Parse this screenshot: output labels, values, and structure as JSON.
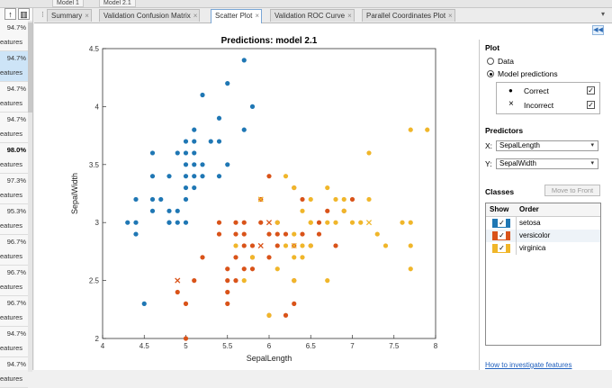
{
  "top_tabs": [
    "Model 1",
    "Model 2.1"
  ],
  "models": [
    {
      "accuracy": "94.7%",
      "features": "eatures"
    },
    {
      "accuracy": "94.7%",
      "features": "eatures"
    },
    {
      "accuracy": "94.7%",
      "features": "eatures"
    },
    {
      "accuracy": "94.7%",
      "features": "eatures"
    },
    {
      "accuracy": "98.0%",
      "features": "eatures"
    },
    {
      "accuracy": "97.3%",
      "features": "eatures"
    },
    {
      "accuracy": "95.3%",
      "features": "eatures"
    },
    {
      "accuracy": "96.7%",
      "features": "eatures"
    },
    {
      "accuracy": "96.7%",
      "features": "eatures"
    },
    {
      "accuracy": "96.7%",
      "features": "eatures"
    },
    {
      "accuracy": "94.7%",
      "features": "eatures"
    },
    {
      "accuracy": "94.7%",
      "features": "eatures"
    }
  ],
  "tabs": [
    "Summary",
    "Validation Confusion Matrix",
    "Scatter Plot",
    "Validation ROC Curve",
    "Parallel Coordinates Plot"
  ],
  "tab_close": "×",
  "tab_menu": "▾",
  "panel": {
    "plot_heading": "Plot",
    "opt_data": "Data",
    "opt_model": "Model predictions",
    "correct_label": "Correct",
    "incorrect_label": "Incorrect",
    "predictors_heading": "Predictors",
    "x_label": "X:",
    "x_value": "SepalLength",
    "y_label": "Y:",
    "y_value": "SepalWidth",
    "classes_heading": "Classes",
    "move_button": "Move to Front",
    "show_header": "Show",
    "order_header": "Order",
    "help_link": "How to investigate features",
    "checkmark": "✓",
    "correct_marker": "●",
    "incorrect_marker": "×",
    "dropdown_arrow": "▾"
  },
  "colors": {
    "setosa": "#1f77b4",
    "versicolor": "#d95319",
    "virginica": "#f0b62a"
  },
  "chart_data": {
    "type": "scatter",
    "title": "Predictions: model 2.1",
    "xlabel": "SepalLength",
    "ylabel": "SepalWidth",
    "xlim": [
      4,
      8
    ],
    "ylim": [
      2,
      4.5
    ],
    "xticks": [
      "4",
      "4.5",
      "5",
      "5.5",
      "6",
      "6.5",
      "7",
      "7.5",
      "8"
    ],
    "yticks": [
      "2",
      "2.5",
      "3",
      "3.5",
      "4",
      "4.5"
    ],
    "grid": false,
    "series": [
      {
        "name": "setosa",
        "color": "#1f77b4",
        "correct": [
          [
            4.3,
            3.0
          ],
          [
            4.4,
            3.0
          ],
          [
            4.4,
            2.9
          ],
          [
            4.4,
            3.2
          ],
          [
            4.5,
            2.3
          ],
          [
            4.6,
            3.1
          ],
          [
            4.6,
            3.4
          ],
          [
            4.6,
            3.6
          ],
          [
            4.6,
            3.2
          ],
          [
            4.7,
            3.2
          ],
          [
            4.8,
            3.0
          ],
          [
            4.8,
            3.1
          ],
          [
            4.8,
            3.4
          ],
          [
            4.8,
            3.0
          ],
          [
            4.9,
            3.0
          ],
          [
            4.9,
            3.1
          ],
          [
            4.9,
            3.6
          ],
          [
            5.0,
            3.0
          ],
          [
            5.0,
            3.2
          ],
          [
            5.0,
            3.3
          ],
          [
            5.0,
            3.4
          ],
          [
            5.0,
            3.5
          ],
          [
            5.0,
            3.6
          ],
          [
            5.1,
            3.3
          ],
          [
            5.1,
            3.4
          ],
          [
            5.1,
            3.5
          ],
          [
            5.1,
            3.7
          ],
          [
            5.1,
            3.8
          ],
          [
            5.2,
            3.4
          ],
          [
            5.2,
            3.5
          ],
          [
            5.2,
            4.1
          ],
          [
            5.3,
            3.7
          ],
          [
            5.4,
            3.4
          ],
          [
            5.4,
            3.7
          ],
          [
            5.4,
            3.9
          ],
          [
            5.5,
            3.5
          ],
          [
            5.5,
            4.2
          ],
          [
            5.7,
            3.8
          ],
          [
            5.7,
            4.4
          ],
          [
            5.8,
            4.0
          ],
          [
            5.1,
            3.6
          ],
          [
            5.0,
            3.7
          ]
        ],
        "incorrect": []
      },
      {
        "name": "versicolor",
        "color": "#d95319",
        "correct": [
          [
            4.9,
            2.4
          ],
          [
            5.0,
            2.0
          ],
          [
            5.0,
            2.3
          ],
          [
            5.1,
            2.5
          ],
          [
            5.2,
            2.7
          ],
          [
            5.4,
            3.0
          ],
          [
            5.5,
            2.3
          ],
          [
            5.5,
            2.4
          ],
          [
            5.5,
            2.5
          ],
          [
            5.5,
            2.6
          ],
          [
            5.6,
            2.5
          ],
          [
            5.6,
            2.7
          ],
          [
            5.6,
            2.9
          ],
          [
            5.6,
            3.0
          ],
          [
            5.7,
            2.6
          ],
          [
            5.7,
            2.8
          ],
          [
            5.7,
            2.9
          ],
          [
            5.7,
            3.0
          ],
          [
            5.8,
            2.6
          ],
          [
            5.8,
            2.7
          ],
          [
            5.9,
            3.0
          ],
          [
            5.9,
            3.2
          ],
          [
            6.0,
            2.2
          ],
          [
            6.0,
            2.7
          ],
          [
            6.0,
            2.9
          ],
          [
            6.0,
            3.4
          ],
          [
            6.1,
            2.8
          ],
          [
            6.1,
            2.9
          ],
          [
            6.1,
            3.0
          ],
          [
            6.2,
            2.2
          ],
          [
            6.2,
            2.9
          ],
          [
            6.3,
            2.3
          ],
          [
            6.3,
            2.5
          ],
          [
            6.3,
            3.3
          ],
          [
            6.4,
            2.9
          ],
          [
            6.4,
            3.2
          ],
          [
            6.5,
            2.8
          ],
          [
            6.6,
            2.9
          ],
          [
            6.6,
            3.0
          ],
          [
            6.7,
            3.1
          ],
          [
            6.8,
            2.8
          ],
          [
            6.9,
            3.1
          ],
          [
            7.0,
            3.2
          ],
          [
            5.4,
            2.9
          ],
          [
            5.8,
            2.8
          ],
          [
            6.3,
            2.8
          ]
        ],
        "incorrect": [
          [
            4.9,
            2.5
          ],
          [
            5.9,
            2.8
          ],
          [
            6.0,
            3.0
          ]
        ]
      },
      {
        "name": "virginica",
        "color": "#f0b62a",
        "correct": [
          [
            5.6,
            2.8
          ],
          [
            5.7,
            2.5
          ],
          [
            5.8,
            2.7
          ],
          [
            6.0,
            2.2
          ],
          [
            6.1,
            2.6
          ],
          [
            6.2,
            3.4
          ],
          [
            6.3,
            2.5
          ],
          [
            6.3,
            2.7
          ],
          [
            6.3,
            2.9
          ],
          [
            6.3,
            3.3
          ],
          [
            6.4,
            2.7
          ],
          [
            6.4,
            2.8
          ],
          [
            6.4,
            3.1
          ],
          [
            6.5,
            3.0
          ],
          [
            6.5,
            3.2
          ],
          [
            6.7,
            2.5
          ],
          [
            6.7,
            3.3
          ],
          [
            6.8,
            3.2
          ],
          [
            6.9,
            3.1
          ],
          [
            7.1,
            3.0
          ],
          [
            7.2,
            3.2
          ],
          [
            7.2,
            3.6
          ],
          [
            7.4,
            2.8
          ],
          [
            7.6,
            3.0
          ],
          [
            7.7,
            2.6
          ],
          [
            7.7,
            3.0
          ],
          [
            7.7,
            3.8
          ],
          [
            7.9,
            3.8
          ],
          [
            6.1,
            3.0
          ],
          [
            6.9,
            3.2
          ],
          [
            6.5,
            3.0
          ],
          [
            6.8,
            3.0
          ],
          [
            7.0,
            3.0
          ],
          [
            7.3,
            2.9
          ],
          [
            6.7,
            3.0
          ],
          [
            6.2,
            2.8
          ],
          [
            6.5,
            2.8
          ],
          [
            7.7,
            2.8
          ]
        ],
        "incorrect": [
          [
            5.9,
            3.2
          ],
          [
            6.3,
            2.8
          ],
          [
            7.2,
            3.0
          ]
        ]
      }
    ]
  }
}
